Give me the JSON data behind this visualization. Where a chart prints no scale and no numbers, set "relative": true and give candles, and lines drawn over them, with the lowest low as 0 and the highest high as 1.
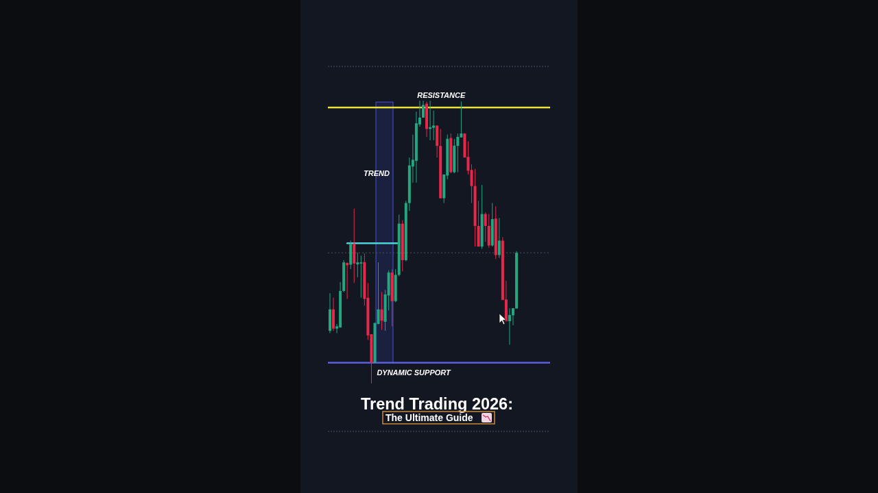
{
  "chart_data": {
    "type": "candlestick",
    "title": "Trend Trading 2026:",
    "subtitle": "The Ultimate Guide",
    "relative": true,
    "annotations": [
      "TREND"
    ],
    "categories": [
      null,
      null,
      null,
      null,
      null,
      null,
      null,
      null,
      null,
      null,
      null,
      null,
      null,
      null,
      null,
      null,
      null,
      null,
      null,
      null,
      null,
      null,
      null,
      null,
      null,
      null,
      null,
      null,
      null,
      null,
      null,
      null,
      null,
      null,
      null,
      null,
      null,
      null,
      null,
      null,
      null,
      null,
      null,
      null,
      null,
      null,
      null,
      null,
      null,
      null,
      null,
      null,
      null,
      null,
      null
    ],
    "ohlc": [
      [
        0.186,
        0.319,
        0.178,
        0.262
      ],
      [
        0.262,
        0.303,
        0.186,
        0.194
      ],
      [
        0.194,
        0.21,
        0.178,
        0.202
      ],
      [
        0.198,
        0.359,
        0.198,
        0.327
      ],
      [
        0.327,
        0.436,
        0.323,
        0.428
      ],
      [
        0.426,
        0.428,
        0.299,
        0.418
      ],
      [
        0.42,
        0.505,
        0.404,
        0.494
      ],
      [
        0.494,
        0.618,
        0.355,
        0.424
      ],
      [
        0.421,
        0.463,
        0.375,
        0.428
      ],
      [
        0.424,
        0.452,
        0.303,
        0.428
      ],
      [
        0.429,
        0.46,
        0.275,
        0.299
      ],
      [
        0.303,
        0.355,
        0.154,
        0.17
      ],
      [
        0.174,
        0.174,
        0,
        0.073
      ],
      [
        0.073,
        0.214,
        0.073,
        0.214
      ],
      [
        0.21,
        0.428,
        0.21,
        0.262
      ],
      [
        0.262,
        0.323,
        0.19,
        0.222
      ],
      [
        0.218,
        0.331,
        0.186,
        0.315
      ],
      [
        0.311,
        0.4,
        0.258,
        0.392
      ],
      [
        0.392,
        0.404,
        0.202,
        0.291
      ],
      [
        0.291,
        0.404,
        0.287,
        0.384
      ],
      [
        0.384,
        0.597,
        0.379,
        0.565
      ],
      [
        0.565,
        0.577,
        0.396,
        0.436
      ],
      [
        0.436,
        0.646,
        0.432,
        0.638
      ],
      [
        0.638,
        0.799,
        0.61,
        0.771
      ],
      [
        0.767,
        0.88,
        0.71,
        0.791
      ],
      [
        0.787,
        0.961,
        0.71,
        0.92
      ],
      [
        0.916,
        1,
        0.908,
        0.94
      ],
      [
        0.94,
        1,
        0.94,
        0.985
      ],
      [
        0.989,
        0.997,
        0.872,
        0.9
      ],
      [
        0.9,
        1,
        0.86,
        0.906
      ],
      [
        0.904,
        0.965,
        0.86,
        0.912
      ],
      [
        0.912,
        0.912,
        0.799,
        0.84
      ],
      [
        0.84,
        0.9,
        0.654,
        0.655
      ],
      [
        0.655,
        0.739,
        0.638,
        0.739
      ],
      [
        0.735,
        0.88,
        0.722,
        0.865
      ],
      [
        0.868,
        0.884,
        0.743,
        0.747
      ],
      [
        0.747,
        0.864,
        0.743,
        0.841
      ],
      [
        0.84,
        0.884,
        0.747,
        0.872
      ],
      [
        0.87,
        0.997,
        0.87,
        0.884
      ],
      [
        0.884,
        0.884,
        0.799,
        0.799
      ],
      [
        0.801,
        0.856,
        0.739,
        0.752
      ],
      [
        0.755,
        0.775,
        0.638,
        0.698
      ],
      [
        0.698,
        0.759,
        0.484,
        0.557
      ],
      [
        0.557,
        0.646,
        0.484,
        0.484
      ],
      [
        0.484,
        0.702,
        0.476,
        0.599
      ],
      [
        0.599,
        0.605,
        0.501,
        0.557
      ],
      [
        0.557,
        0.599,
        0.48,
        0.488
      ],
      [
        0.488,
        0.638,
        0.484,
        0.581
      ],
      [
        0.583,
        0.626,
        0.44,
        0.454
      ],
      [
        0.454,
        0.585,
        0.444,
        0.505
      ],
      [
        0.505,
        0.517,
        0.295,
        0.295
      ],
      [
        0.297,
        0.363,
        0.22,
        0.22
      ],
      [
        0.22,
        0.266,
        0.137,
        0.242
      ],
      [
        0.241,
        0.266,
        0.206,
        0.266
      ],
      [
        0.265,
        0.468,
        0.265,
        0.462
      ]
    ],
    "colors": [
      "#22a77f",
      "#e6284b",
      "#22a77f",
      "#22a77f",
      "#22a77f",
      "#e6284b",
      "#22a77f",
      "#e6284b",
      "#22a77f",
      "#22a77f",
      "#e6284b",
      "#e6284b",
      "#e6284b",
      "#22a77f",
      "#22a77f",
      "#e6284b",
      "#22a77f",
      "#22a77f",
      "#e6284b",
      "#22a77f",
      "#22a77f",
      "#e6284b",
      "#22a77f",
      "#22a77f",
      "#22a77f",
      "#22a77f",
      "#22a77f",
      "#22a77f",
      "#e6284b",
      "#22a77f",
      "#22a77f",
      "#e6284b",
      "#e6284b",
      "#22a77f",
      "#22a77f",
      "#e6284b",
      "#22a77f",
      "#22a77f",
      "#22a77f",
      "#e6284b",
      "#e6284b",
      "#e6284b",
      "#e6284b",
      "#e6284b",
      "#22a77f",
      "#e6284b",
      "#e6284b",
      "#22a77f",
      "#e6284b",
      "#22a77f",
      "#e6284b",
      "#e6284b",
      "#22a77f",
      "#22a77f",
      "#22a77f"
    ],
    "series": [
      {
        "type": "line",
        "color": "#4fd3da",
        "values": [
          null,
          null,
          null,
          null,
          null,
          0.496,
          0.496,
          0.496,
          0.496,
          0.496,
          0.496,
          0.496,
          0.496,
          0.496,
          0.496,
          0.496,
          0.496,
          0.496,
          0.496,
          0.496,
          0.496,
          null,
          null,
          null,
          null,
          null,
          null,
          null,
          null,
          null,
          null,
          null,
          null,
          null,
          null,
          null,
          null,
          null,
          null,
          null,
          null,
          null,
          null,
          null,
          null,
          null,
          null,
          null,
          null,
          null,
          null,
          null,
          null,
          null,
          null
        ]
      }
    ],
    "ref_lines": [
      {
        "axis": "y",
        "value": 0.976,
        "label": "RESISTANCE",
        "color": "#e9e33c",
        "line_style": "solid"
      },
      {
        "axis": "y",
        "value": 0.073,
        "label": "DYNAMIC SUPPORT",
        "color": "#5a5ee0",
        "line_style": "solid"
      },
      {
        "axis": "y",
        "value": 0.462,
        "color": "#4a5563",
        "line_style": "dotted"
      }
    ]
  }
}
